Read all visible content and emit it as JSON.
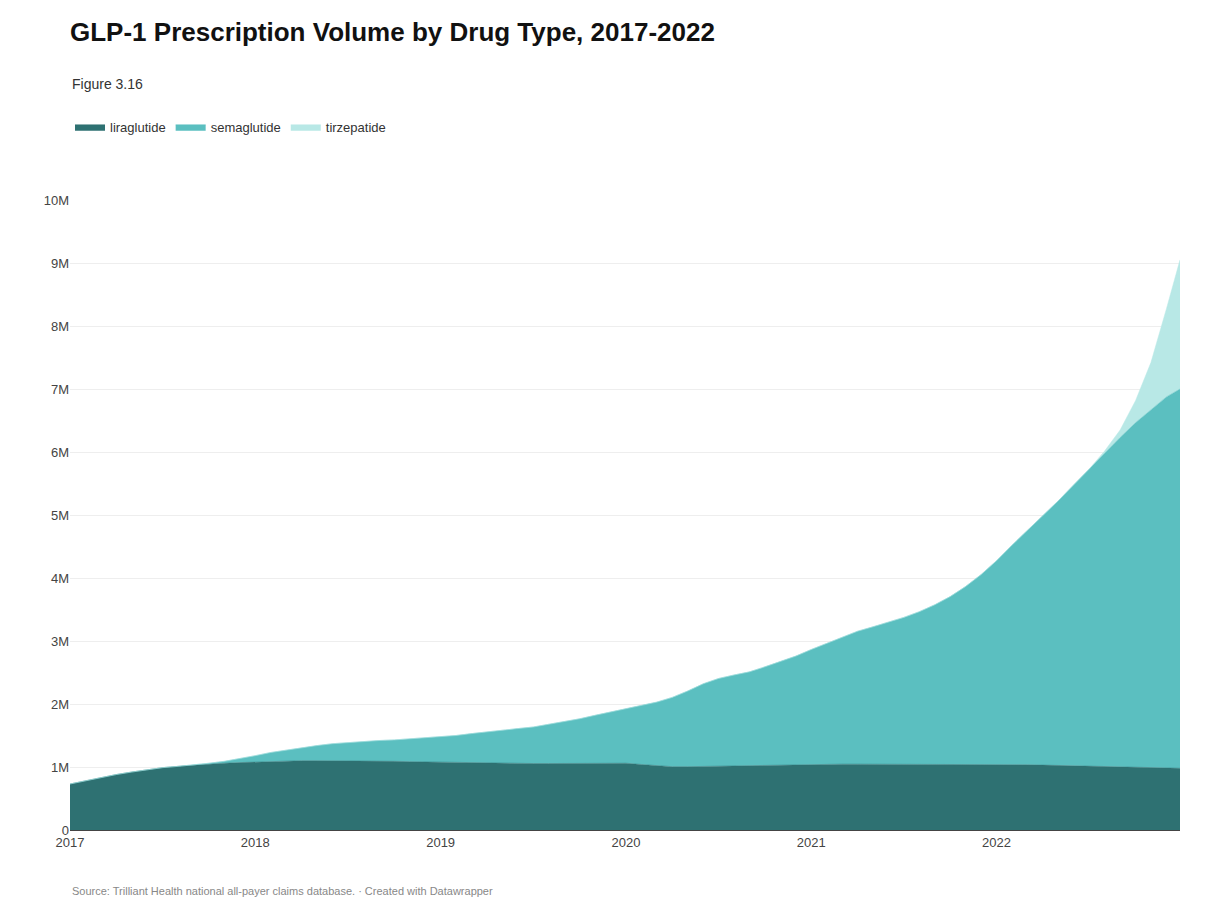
{
  "chart_data": {
    "type": "area",
    "stacked": true,
    "title": "GLP-1 Prescription Volume by Drug Type, 2017-2022",
    "subtitle": "Figure 3.16",
    "source": "Source: Trilliant Health national all-payer claims database. · Created with Datawrapper",
    "x": [
      2017.0,
      2017.083,
      2017.167,
      2017.25,
      2017.333,
      2017.417,
      2017.5,
      2017.583,
      2017.667,
      2017.75,
      2017.833,
      2017.917,
      2018.0,
      2018.083,
      2018.167,
      2018.25,
      2018.333,
      2018.417,
      2018.5,
      2018.583,
      2018.667,
      2018.75,
      2018.833,
      2018.917,
      2019.0,
      2019.083,
      2019.167,
      2019.25,
      2019.333,
      2019.417,
      2019.5,
      2019.583,
      2019.667,
      2019.75,
      2019.833,
      2019.917,
      2020.0,
      2020.083,
      2020.167,
      2020.25,
      2020.333,
      2020.417,
      2020.5,
      2020.583,
      2020.667,
      2020.75,
      2020.833,
      2020.917,
      2021.0,
      2021.083,
      2021.167,
      2021.25,
      2021.333,
      2021.417,
      2021.5,
      2021.583,
      2021.667,
      2021.75,
      2021.833,
      2021.917,
      2022.0,
      2022.083,
      2022.167,
      2022.25,
      2022.333,
      2022.417,
      2022.5,
      2022.583,
      2022.667,
      2022.75,
      2022.833,
      2022.917,
      2022.99
    ],
    "series": [
      {
        "name": "liraglutide",
        "color": "#2e7172",
        "values": [
          730000,
          780000,
          840000,
          880000,
          920000,
          960000,
          990000,
          1010000,
          1030000,
          1050000,
          1060000,
          1070000,
          1080000,
          1090000,
          1090000,
          1100000,
          1100000,
          1100000,
          1100000,
          1100000,
          1095000,
          1090000,
          1085000,
          1080000,
          1075000,
          1070000,
          1070000,
          1070000,
          1065000,
          1060000,
          1055000,
          1055000,
          1055000,
          1055000,
          1060000,
          1060000,
          1060000,
          1040000,
          1020000,
          1005000,
          1005000,
          1010000,
          1015000,
          1020000,
          1020000,
          1030000,
          1035000,
          1040000,
          1045000,
          1045000,
          1045000,
          1045000,
          1045000,
          1045000,
          1045000,
          1045000,
          1045000,
          1045000,
          1045000,
          1045000,
          1045000,
          1040000,
          1035000,
          1030000,
          1025000,
          1020000,
          1010000,
          1005000,
          1000000,
          995000,
          990000,
          985000,
          980000
        ]
      },
      {
        "name": "semaglutide",
        "color": "#5bbfc0",
        "values": [
          0,
          0,
          0,
          0,
          0,
          0,
          0,
          0,
          0,
          10000,
          30000,
          60000,
          100000,
          140000,
          180000,
          210000,
          240000,
          270000,
          290000,
          310000,
          325000,
          340000,
          360000,
          380000,
          400000,
          430000,
          460000,
          490000,
          520000,
          550000,
          580000,
          620000,
          660000,
          710000,
          760000,
          810000,
          870000,
          940000,
          1010000,
          1100000,
          1200000,
          1310000,
          1390000,
          1440000,
          1490000,
          1560000,
          1640000,
          1720000,
          1820000,
          1920000,
          2020000,
          2110000,
          2180000,
          2250000,
          2330000,
          2420000,
          2530000,
          2660000,
          2820000,
          3010000,
          3230000,
          3480000,
          3720000,
          3960000,
          4200000,
          4460000,
          4720000,
          4980000,
          5230000,
          5470000,
          5680000,
          5890000,
          6020000
        ]
      },
      {
        "name": "tirzepatide",
        "color": "#b8e8e6",
        "values": [
          0,
          0,
          0,
          0,
          0,
          0,
          0,
          0,
          0,
          0,
          0,
          0,
          0,
          0,
          0,
          0,
          0,
          0,
          0,
          0,
          0,
          0,
          0,
          0,
          0,
          0,
          0,
          0,
          0,
          0,
          0,
          0,
          0,
          0,
          0,
          0,
          0,
          0,
          0,
          0,
          0,
          0,
          0,
          0,
          0,
          0,
          0,
          0,
          0,
          0,
          0,
          0,
          0,
          0,
          0,
          0,
          0,
          0,
          0,
          0,
          0,
          0,
          0,
          0,
          0,
          0,
          0,
          30000,
          120000,
          350000,
          750000,
          1400000,
          2050000
        ]
      }
    ],
    "xlim": [
      2017.0,
      2022.99
    ],
    "xticks": [
      2017,
      2018,
      2019,
      2020,
      2021,
      2022
    ],
    "ylim": [
      0,
      10000000
    ],
    "yticks": [
      0,
      {
        "value": 1000000,
        "label": "1M"
      },
      {
        "value": 2000000,
        "label": "2M"
      },
      {
        "value": 3000000,
        "label": "3M"
      },
      {
        "value": 4000000,
        "label": "4M"
      },
      {
        "value": 5000000,
        "label": "5M"
      },
      {
        "value": 6000000,
        "label": "6M"
      },
      {
        "value": 7000000,
        "label": "7M"
      },
      {
        "value": 8000000,
        "label": "8M"
      },
      {
        "value": 9000000,
        "label": "9M"
      },
      {
        "value": 10000000,
        "label": "10M"
      }
    ],
    "grid": "y",
    "legend": "top left"
  }
}
